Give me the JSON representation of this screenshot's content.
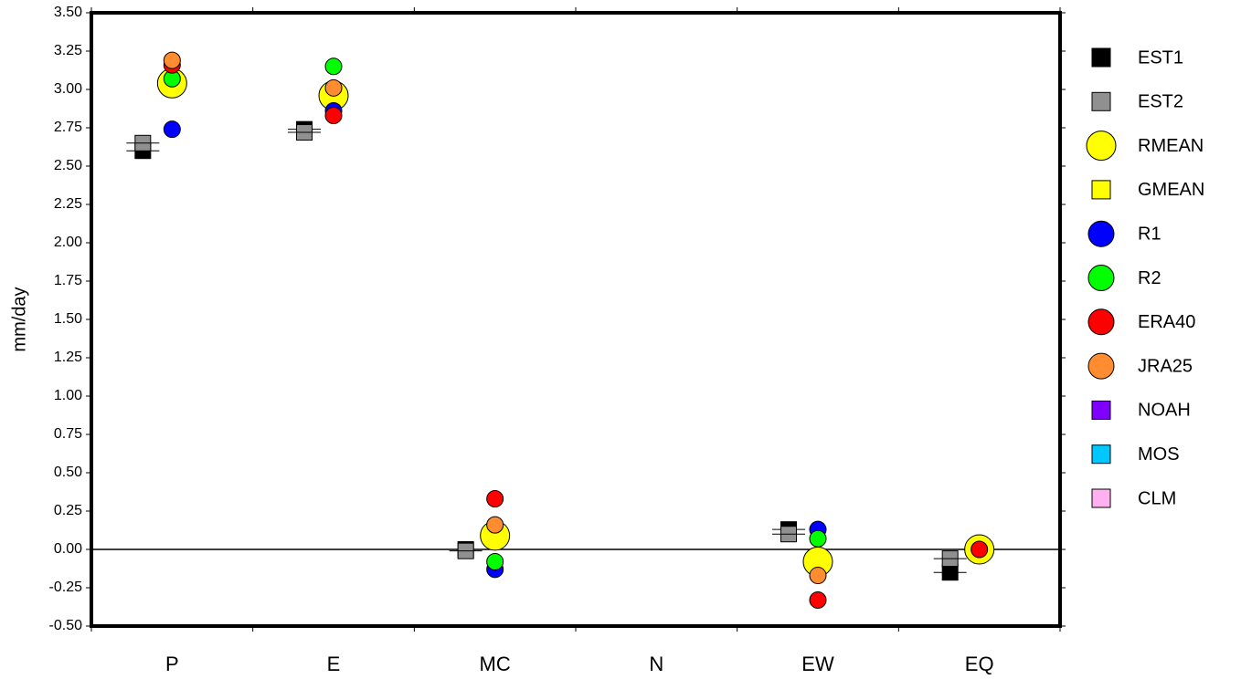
{
  "chart_data": {
    "type": "scatter",
    "y_label": "mm/day",
    "categories": [
      "P",
      "E",
      "MC",
      "N",
      "EW",
      "EQ"
    ],
    "ylim": [
      -0.5,
      3.5
    ],
    "yticks": [
      {
        "value": -0.5,
        "label": "-0.50"
      },
      {
        "value": -0.25,
        "label": "-0.25"
      },
      {
        "value": 0,
        "label": "0.00"
      },
      {
        "value": 0.25,
        "label": "0.25"
      },
      {
        "value": 0.5,
        "label": "0.50"
      },
      {
        "value": 0.75,
        "label": "0.75"
      },
      {
        "value": 1,
        "label": "1.00"
      },
      {
        "value": 1.25,
        "label": "1.25"
      },
      {
        "value": 1.5,
        "label": "1.50"
      },
      {
        "value": 1.75,
        "label": "1.75"
      },
      {
        "value": 2,
        "label": "2.00"
      },
      {
        "value": 2.25,
        "label": "2.25"
      },
      {
        "value": 2.5,
        "label": "2.50"
      },
      {
        "value": 2.75,
        "label": "2.75"
      },
      {
        "value": 3,
        "label": "3.00"
      },
      {
        "value": 3.25,
        "label": "3.25"
      },
      {
        "value": 3.5,
        "label": "3.50"
      }
    ],
    "zero_line": true,
    "series": [
      {
        "name": "EST1",
        "color": "#000000",
        "marker": "square",
        "values": [
          2.6,
          2.74,
          0.0,
          null,
          0.13,
          -0.15
        ]
      },
      {
        "name": "EST2",
        "color": "#909090",
        "marker": "square",
        "values": [
          2.65,
          2.72,
          -0.01,
          null,
          0.1,
          -0.06
        ]
      },
      {
        "name": "RMEAN",
        "color": "#ffff00",
        "marker": "large-circle",
        "values": [
          3.04,
          2.96,
          0.09,
          null,
          -0.08,
          0.0
        ]
      },
      {
        "name": "GMEAN",
        "color": "#ffff00",
        "marker": "square",
        "values": [
          null,
          null,
          null,
          null,
          null,
          null
        ]
      },
      {
        "name": "R1",
        "color": "#0000ff",
        "marker": "circle",
        "values": [
          2.74,
          2.86,
          -0.13,
          null,
          0.13,
          null
        ]
      },
      {
        "name": "R2",
        "color": "#00ff00",
        "marker": "circle",
        "values": [
          3.07,
          3.15,
          -0.08,
          null,
          0.07,
          null
        ]
      },
      {
        "name": "ERA40",
        "color": "#ff0000",
        "marker": "circle",
        "values": [
          3.16,
          2.83,
          0.33,
          null,
          -0.33,
          0.0
        ]
      },
      {
        "name": "JRA25",
        "color": "#ff8c30",
        "marker": "circle",
        "values": [
          3.19,
          3.01,
          0.16,
          null,
          -0.17,
          null
        ]
      },
      {
        "name": "NOAH",
        "color": "#8000ff",
        "marker": "square",
        "values": [
          null,
          null,
          null,
          null,
          null,
          null
        ]
      },
      {
        "name": "MOS",
        "color": "#00c8ff",
        "marker": "square",
        "values": [
          null,
          null,
          null,
          null,
          null,
          null
        ]
      },
      {
        "name": "CLM",
        "color": "#ffb0f0",
        "marker": "square",
        "values": [
          null,
          null,
          null,
          null,
          null,
          null
        ]
      }
    ]
  }
}
